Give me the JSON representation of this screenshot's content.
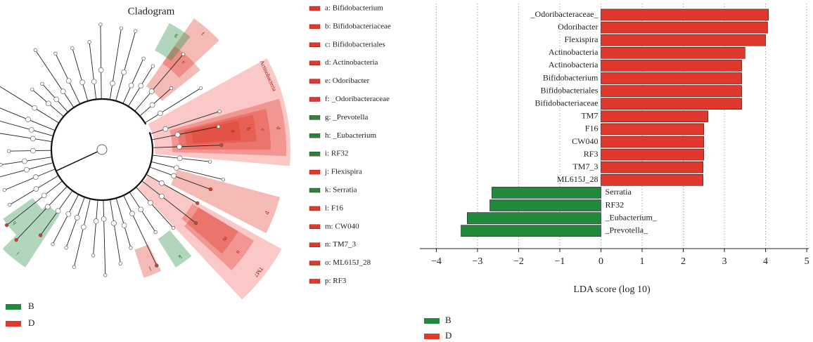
{
  "chart_data": [
    {
      "type": "cladogram",
      "title": "Cladogram",
      "groups": [
        {
          "name": "B",
          "color": "#1f8a3c",
          "light": "#b9e8a8"
        },
        {
          "name": "D",
          "color": "#e0382c",
          "light": "#f7a3a0"
        }
      ],
      "keys": [
        {
          "label": "a: Bifidobacterium",
          "group": "D"
        },
        {
          "label": "b: Bifidobacteriaceae",
          "group": "D"
        },
        {
          "label": "c: Bifidobacteriales",
          "group": "D"
        },
        {
          "label": "d: Actinobacteria",
          "group": "D"
        },
        {
          "label": "e: Odoribacter",
          "group": "D"
        },
        {
          "label": "f: _Odoribacteraceae",
          "group": "D"
        },
        {
          "label": "g: _Prevotella",
          "group": "B"
        },
        {
          "label": "h: _Eubacterium",
          "group": "B"
        },
        {
          "label": "i: RF32",
          "group": "B"
        },
        {
          "label": "j: Flexispira",
          "group": "D"
        },
        {
          "label": "k: Serratia",
          "group": "B"
        },
        {
          "label": "l: F16",
          "group": "D"
        },
        {
          "label": "m: CW040",
          "group": "D"
        },
        {
          "label": "n: TM7_3",
          "group": "D"
        },
        {
          "label": "o: ML615J_28",
          "group": "D"
        },
        {
          "label": "p: RF3",
          "group": "D"
        }
      ],
      "wedges": [
        {
          "label": "Actinobacteria",
          "group": "D"
        },
        {
          "label": "d",
          "group": "D"
        },
        {
          "label": "c",
          "group": "D"
        },
        {
          "label": "b",
          "group": "D"
        },
        {
          "label": "a",
          "group": "D"
        },
        {
          "label": "e",
          "group": "D"
        },
        {
          "label": "f",
          "group": "D"
        },
        {
          "label": "g",
          "group": "B"
        },
        {
          "label": "h",
          "group": "B"
        },
        {
          "label": "i",
          "group": "B"
        },
        {
          "label": "k",
          "group": "B"
        },
        {
          "label": "l",
          "group": "D"
        },
        {
          "label": "TM7",
          "group": "D"
        },
        {
          "label": "n",
          "group": "D"
        },
        {
          "label": "m",
          "group": "D"
        },
        {
          "label": "p",
          "group": "D"
        }
      ]
    },
    {
      "type": "bar",
      "orientation": "horizontal",
      "xlabel": "LDA score (log 10)",
      "categories": [
        "_Odoribacteraceae_",
        "Odoribacter",
        "Flexispira",
        "Actinobacteria",
        "Actinobacteria",
        "Bifidobacterium",
        "Bifidobacteriales",
        "Bifidobacteriaceae",
        "TM7",
        "F16",
        "CW040",
        "RF3",
        "TM7_3",
        "ML615J_28",
        "Serratia",
        "RF32",
        "_Eubacterium_",
        "_Prevotella_"
      ],
      "series": [
        {
          "name": "B",
          "color": "#1f8a3c",
          "values": [
            null,
            null,
            null,
            null,
            null,
            null,
            null,
            null,
            null,
            null,
            null,
            null,
            null,
            null,
            -2.65,
            -2.7,
            -3.25,
            -3.4
          ]
        },
        {
          "name": "D",
          "color": "#e0382c",
          "values": [
            4.07,
            4.05,
            4.0,
            3.5,
            3.42,
            3.42,
            3.42,
            3.42,
            2.6,
            2.5,
            2.5,
            2.5,
            2.48,
            2.48,
            null,
            null,
            null,
            null
          ]
        }
      ],
      "xlim": [
        -4.4,
        5.05
      ],
      "xticks": [
        {
          "value": -4,
          "label": "−4"
        },
        {
          "value": -3,
          "label": "−3"
        },
        {
          "value": -2,
          "label": "−2"
        },
        {
          "value": -1,
          "label": "−1"
        },
        0,
        1,
        2,
        3,
        4,
        5
      ],
      "grid": true
    }
  ]
}
